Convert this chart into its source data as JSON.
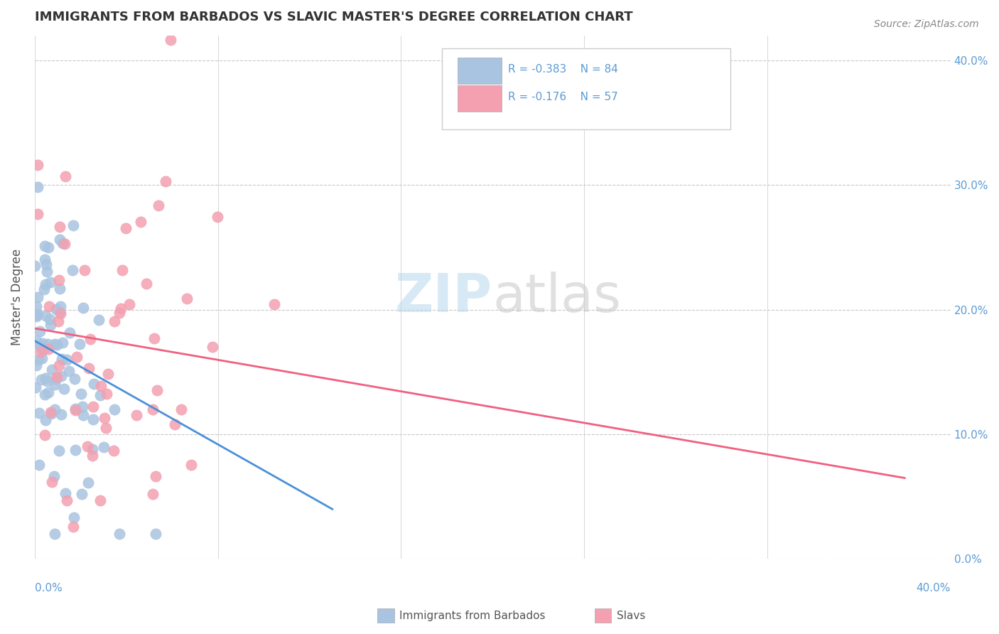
{
  "title": "IMMIGRANTS FROM BARBADOS VS SLAVIC MASTER'S DEGREE CORRELATION CHART",
  "source": "Source: ZipAtlas.com",
  "ylabel": "Master's Degree",
  "legend_blue_r": "R = -0.383",
  "legend_blue_n": "N = 84",
  "legend_pink_r": "R = -0.176",
  "legend_pink_n": "N = 57",
  "watermark_zip": "ZIP",
  "watermark_atlas": "atlas",
  "blue_color": "#a8c4e0",
  "pink_color": "#f4a0b0",
  "blue_line_color": "#4a90d9",
  "pink_line_color": "#f06080",
  "title_color": "#333333",
  "axis_color": "#5b9bd5",
  "grid_color": "#c8c8c8",
  "background_color": "#ffffff",
  "xlim": [
    0.0,
    0.4
  ],
  "ylim": [
    0.0,
    0.42
  ],
  "blue_trend_x": [
    0.0,
    0.13
  ],
  "blue_trend_y": [
    0.175,
    0.04
  ],
  "pink_trend_x": [
    0.0,
    0.38
  ],
  "pink_trend_y": [
    0.185,
    0.065
  ],
  "x_ticks": [
    0.0,
    0.08,
    0.16,
    0.24,
    0.32,
    0.4
  ],
  "y_ticks": [
    0.0,
    0.1,
    0.2,
    0.3,
    0.4
  ],
  "y_tick_labels": [
    "0.0%",
    "10.0%",
    "20.0%",
    "30.0%",
    "40.0%"
  ]
}
